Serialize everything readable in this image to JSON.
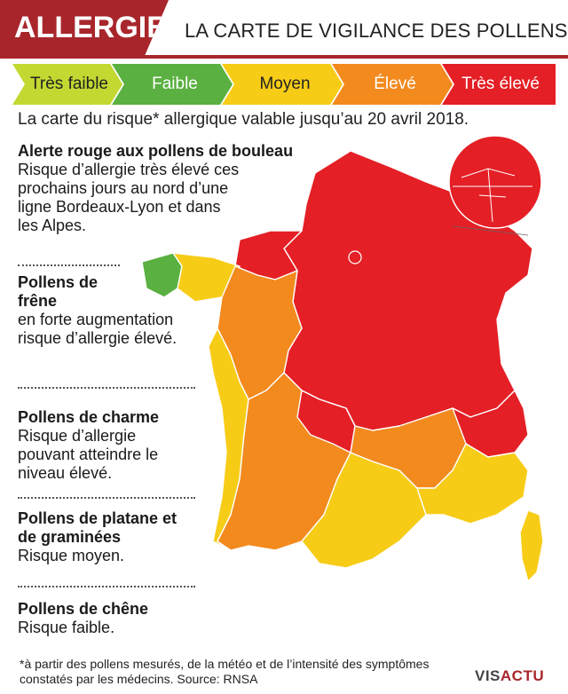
{
  "header": {
    "tag": "ALLERGIE",
    "title": "LA CARTE DE VIGILANCE DES POLLENS"
  },
  "scale": [
    {
      "label": "Très faible",
      "color": "#c3d831"
    },
    {
      "label": "Faible",
      "color": "#5ab040"
    },
    {
      "label": "Moyen",
      "color": "#f7cc17"
    },
    {
      "label": "Élevé",
      "color": "#f28a1e"
    },
    {
      "label": "Très élevé",
      "color": "#e41f25"
    }
  ],
  "subtitle": "La carte du risque* allergique valable jusqu’au 20 avril 2018.",
  "notes": [
    {
      "title": "Alerte rouge aux pollens de bouleau",
      "text": "Risque d’allergie très élevé ces prochains jours au nord d’une ligne Bordeaux-Lyon et dans les Alpes."
    },
    {
      "title": "Pollens de frêne",
      "text": "en forte augmentation risque d’allergie élevé."
    },
    {
      "title": "Pollens de charme",
      "text": "Risque d’allergie pouvant atteindre le niveau élevé."
    },
    {
      "title": "Pollens de platane et de graminées",
      "text": "Risque moyen."
    },
    {
      "title": "Pollens de chêne",
      "text": "Risque faible."
    }
  ],
  "footnote": "*à partir des pollens mesurés, de la météo et de l’intensité des symptômes constatés par les médecins. Source: RNSA",
  "logo": {
    "part1": "VIS",
    "part2": "ACTU"
  },
  "colors": {
    "brand": "#a8262b",
    "border": "#ffffff"
  }
}
